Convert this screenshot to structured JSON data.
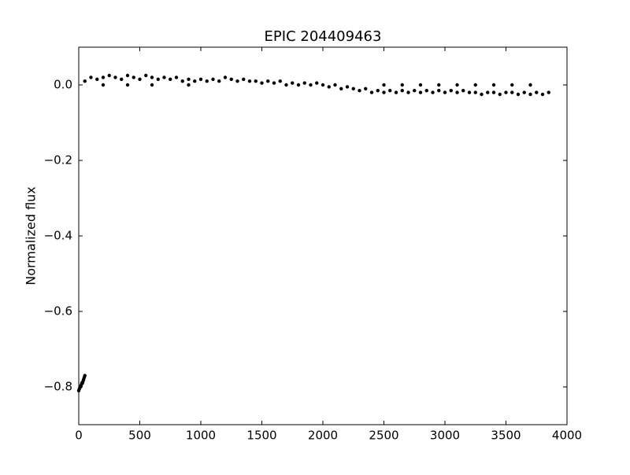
{
  "chart_data": {
    "type": "scatter",
    "title": "EPIC 204409463",
    "y_label": "Normalized flux",
    "color": "#000000",
    "x": [
      0,
      5,
      10,
      15,
      20,
      25,
      30,
      35,
      40,
      45,
      50,
      50,
      100,
      150,
      200,
      250,
      300,
      350,
      400,
      450,
      500,
      550,
      600,
      650,
      700,
      750,
      800,
      850,
      900,
      950,
      1000,
      1050,
      1100,
      1150,
      1200,
      1250,
      1300,
      1350,
      1400,
      1450,
      1500,
      1550,
      1600,
      1650,
      1700,
      1750,
      1800,
      1850,
      1900,
      1950,
      2000,
      2050,
      2100,
      2150,
      2200,
      2250,
      2300,
      2350,
      2400,
      2450,
      2500,
      2550,
      2600,
      2650,
      2700,
      2750,
      2800,
      2850,
      2900,
      2950,
      3000,
      3050,
      3100,
      3150,
      3200,
      3250,
      3300,
      3350,
      3400,
      3450,
      3500,
      3550,
      3600,
      3650,
      3700,
      3750,
      3800,
      3850,
      200,
      400,
      600,
      900,
      2500,
      2650,
      2800,
      2950,
      3100,
      3250,
      3400,
      3550,
      3700
    ],
    "values": [
      -0.81,
      -0.805,
      -0.8,
      -0.8,
      -0.795,
      -0.79,
      -0.79,
      -0.785,
      -0.78,
      -0.775,
      -0.77,
      0.01,
      0.02,
      0.015,
      0.02,
      0.025,
      0.02,
      0.015,
      0.025,
      0.02,
      0.015,
      0.025,
      0.02,
      0.015,
      0.02,
      0.015,
      0.02,
      0.01,
      0.015,
      0.01,
      0.015,
      0.01,
      0.015,
      0.01,
      0.02,
      0.015,
      0.01,
      0.015,
      0.01,
      0.01,
      0.005,
      0.01,
      0.005,
      0.01,
      0.0,
      0.005,
      0.0,
      0.005,
      0.0,
      0.005,
      0.0,
      -0.005,
      0.0,
      -0.01,
      -0.005,
      -0.01,
      -0.015,
      -0.01,
      -0.02,
      -0.015,
      -0.02,
      -0.015,
      -0.02,
      -0.015,
      -0.02,
      -0.015,
      -0.02,
      -0.015,
      -0.02,
      -0.015,
      -0.02,
      -0.015,
      -0.02,
      -0.015,
      -0.02,
      -0.02,
      -0.025,
      -0.02,
      -0.02,
      -0.025,
      -0.02,
      -0.02,
      -0.025,
      -0.02,
      -0.025,
      -0.02,
      -0.025,
      -0.02,
      0,
      0,
      0,
      0,
      0,
      0,
      0,
      0,
      0,
      0,
      0,
      0,
      0
    ],
    "xlim": [
      0,
      4000
    ],
    "xticks": [
      0,
      500,
      1000,
      1500,
      2000,
      2500,
      3000,
      3500,
      4000
    ],
    "ylim": [
      -0.9,
      0.1
    ],
    "yticks": [
      {
        "value": 0.0,
        "label": "0.0"
      },
      {
        "value": -0.2,
        "label": "−0.2"
      },
      {
        "value": -0.4,
        "label": "−0.4"
      },
      {
        "value": -0.6,
        "label": "−0.6"
      },
      {
        "value": -0.8,
        "label": "−0.8"
      }
    ]
  }
}
